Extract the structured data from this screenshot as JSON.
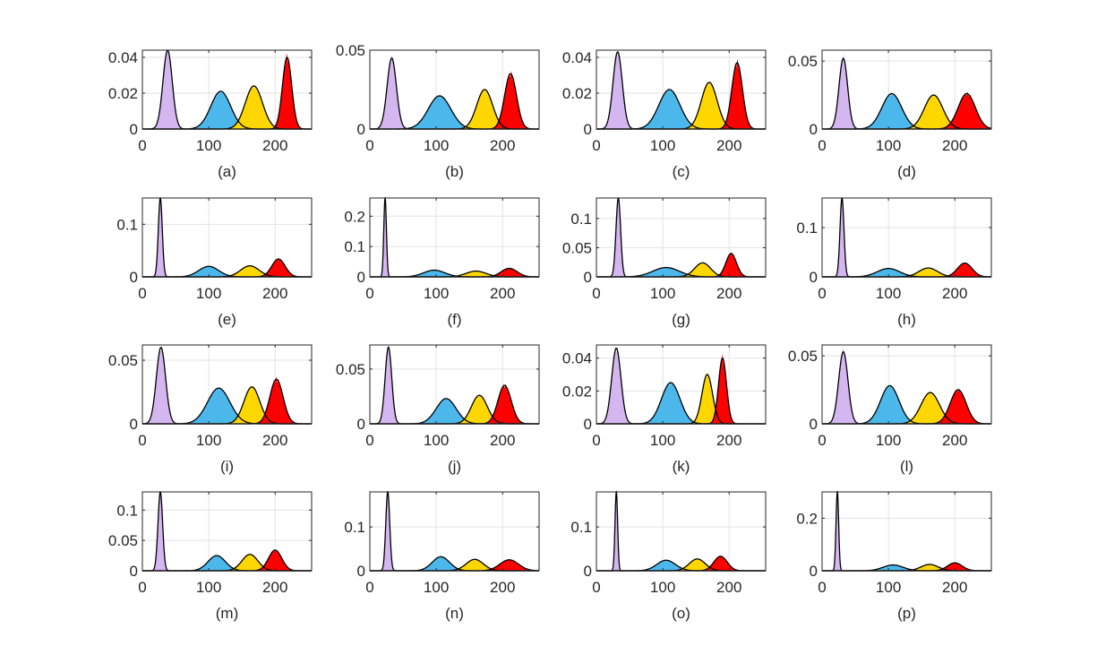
{
  "figure": {
    "grid": true,
    "series_colors": {
      "purple": "#d4b6f0",
      "blue": "#4cb7ea",
      "yellow": "#ffd700",
      "red": "#ff0000",
      "fit": "#000000"
    },
    "xlim": [
      0,
      255
    ],
    "xticks": [
      0,
      100,
      200
    ],
    "xtick_labels": [
      "0",
      "100",
      "200"
    ]
  },
  "chart_data": [
    {
      "caption": "(a)",
      "type": "area",
      "ylim": [
        0,
        0.044
      ],
      "yticks": [
        0,
        0.02,
        0.04
      ],
      "ytick_labels": [
        "0",
        "0.02",
        "0.04"
      ],
      "components": [
        {
          "name": "purple",
          "mu": 38,
          "sigma": 7,
          "peak": 0.044
        },
        {
          "name": "blue",
          "mu": 118,
          "sigma": 15,
          "peak": 0.021
        },
        {
          "name": "yellow",
          "mu": 168,
          "sigma": 13,
          "peak": 0.024
        },
        {
          "name": "red",
          "mu": 218,
          "sigma": 7,
          "peak": 0.04
        }
      ]
    },
    {
      "caption": "(b)",
      "type": "area",
      "ylim": [
        0,
        0.05
      ],
      "yticks": [
        0,
        0.05
      ],
      "ytick_labels": [
        "0",
        "0.05"
      ],
      "components": [
        {
          "name": "purple",
          "mu": 33,
          "sigma": 7,
          "peak": 0.045
        },
        {
          "name": "blue",
          "mu": 105,
          "sigma": 17,
          "peak": 0.021
        },
        {
          "name": "yellow",
          "mu": 173,
          "sigma": 12,
          "peak": 0.025
        },
        {
          "name": "red",
          "mu": 212,
          "sigma": 9,
          "peak": 0.035
        }
      ]
    },
    {
      "caption": "(c)",
      "type": "area",
      "ylim": [
        0,
        0.044
      ],
      "yticks": [
        0,
        0.02,
        0.04
      ],
      "ytick_labels": [
        "0",
        "0.02",
        "0.04"
      ],
      "components": [
        {
          "name": "purple",
          "mu": 32,
          "sigma": 7,
          "peak": 0.043
        },
        {
          "name": "blue",
          "mu": 110,
          "sigma": 16,
          "peak": 0.022
        },
        {
          "name": "yellow",
          "mu": 170,
          "sigma": 12,
          "peak": 0.026
        },
        {
          "name": "red",
          "mu": 212,
          "sigma": 8,
          "peak": 0.037
        }
      ]
    },
    {
      "caption": "(d)",
      "type": "area",
      "ylim": [
        0,
        0.058
      ],
      "yticks": [
        0,
        0.05
      ],
      "ytick_labels": [
        "0",
        "0.05"
      ],
      "components": [
        {
          "name": "purple",
          "mu": 32,
          "sigma": 6.5,
          "peak": 0.052
        },
        {
          "name": "blue",
          "mu": 105,
          "sigma": 15,
          "peak": 0.026
        },
        {
          "name": "yellow",
          "mu": 168,
          "sigma": 14,
          "peak": 0.025
        },
        {
          "name": "red",
          "mu": 218,
          "sigma": 13,
          "peak": 0.026
        }
      ]
    },
    {
      "caption": "(e)",
      "type": "area",
      "ylim": [
        0,
        0.15
      ],
      "yticks": [
        0,
        0.1
      ],
      "ytick_labels": [
        "0",
        "0.1"
      ],
      "components": [
        {
          "name": "purple",
          "mu": 27,
          "sigma": 3,
          "peak": 0.15
        },
        {
          "name": "blue",
          "mu": 100,
          "sigma": 15,
          "peak": 0.02
        },
        {
          "name": "yellow",
          "mu": 162,
          "sigma": 14,
          "peak": 0.021
        },
        {
          "name": "red",
          "mu": 205,
          "sigma": 10,
          "peak": 0.034
        }
      ]
    },
    {
      "caption": "(f)",
      "type": "area",
      "ylim": [
        0,
        0.26
      ],
      "yticks": [
        0,
        0.1,
        0.2
      ],
      "ytick_labels": [
        "0",
        "0.1",
        "0.2"
      ],
      "components": [
        {
          "name": "purple",
          "mu": 23,
          "sigma": 2,
          "peak": 0.26
        },
        {
          "name": "blue",
          "mu": 97,
          "sigma": 16,
          "peak": 0.022
        },
        {
          "name": "yellow",
          "mu": 160,
          "sigma": 15,
          "peak": 0.019
        },
        {
          "name": "red",
          "mu": 210,
          "sigma": 12,
          "peak": 0.028
        }
      ]
    },
    {
      "caption": "(g)",
      "type": "area",
      "ylim": [
        0,
        0.135
      ],
      "yticks": [
        0,
        0.05,
        0.1
      ],
      "ytick_labels": [
        "0",
        "0.05",
        "0.1"
      ],
      "components": [
        {
          "name": "purple",
          "mu": 33,
          "sigma": 3.5,
          "peak": 0.135
        },
        {
          "name": "blue",
          "mu": 105,
          "sigma": 20,
          "peak": 0.016
        },
        {
          "name": "yellow",
          "mu": 160,
          "sigma": 12,
          "peak": 0.024
        },
        {
          "name": "red",
          "mu": 203,
          "sigma": 8,
          "peak": 0.04
        }
      ]
    },
    {
      "caption": "(h)",
      "type": "area",
      "ylim": [
        0,
        0.16
      ],
      "yticks": [
        0,
        0.1
      ],
      "ytick_labels": [
        "0",
        "0.1"
      ],
      "components": [
        {
          "name": "purple",
          "mu": 30,
          "sigma": 3,
          "peak": 0.16
        },
        {
          "name": "blue",
          "mu": 100,
          "sigma": 17,
          "peak": 0.017
        },
        {
          "name": "yellow",
          "mu": 160,
          "sigma": 14,
          "peak": 0.018
        },
        {
          "name": "red",
          "mu": 215,
          "sigma": 11,
          "peak": 0.028
        }
      ]
    },
    {
      "caption": "(i)",
      "type": "area",
      "ylim": [
        0,
        0.062
      ],
      "yticks": [
        0,
        0.05
      ],
      "ytick_labels": [
        "0",
        "0.05"
      ],
      "components": [
        {
          "name": "purple",
          "mu": 28,
          "sigma": 7,
          "peak": 0.06
        },
        {
          "name": "blue",
          "mu": 115,
          "sigma": 17,
          "peak": 0.028
        },
        {
          "name": "yellow",
          "mu": 165,
          "sigma": 12,
          "peak": 0.029
        },
        {
          "name": "red",
          "mu": 202,
          "sigma": 10,
          "peak": 0.035
        }
      ]
    },
    {
      "caption": "(j)",
      "type": "area",
      "ylim": [
        0,
        0.072
      ],
      "yticks": [
        0,
        0.05
      ],
      "ytick_labels": [
        "0",
        "0.05"
      ],
      "components": [
        {
          "name": "purple",
          "mu": 28,
          "sigma": 5,
          "peak": 0.07
        },
        {
          "name": "blue",
          "mu": 115,
          "sigma": 15,
          "peak": 0.023
        },
        {
          "name": "yellow",
          "mu": 165,
          "sigma": 12,
          "peak": 0.026
        },
        {
          "name": "red",
          "mu": 203,
          "sigma": 10,
          "peak": 0.035
        }
      ]
    },
    {
      "caption": "(k)",
      "type": "area",
      "ylim": [
        0,
        0.048
      ],
      "yticks": [
        0,
        0.02,
        0.04
      ],
      "ytick_labels": [
        "0",
        "0.02",
        "0.04"
      ],
      "components": [
        {
          "name": "purple",
          "mu": 30,
          "sigma": 7,
          "peak": 0.046
        },
        {
          "name": "blue",
          "mu": 112,
          "sigma": 14,
          "peak": 0.025
        },
        {
          "name": "yellow",
          "mu": 167,
          "sigma": 8,
          "peak": 0.03
        },
        {
          "name": "red",
          "mu": 190,
          "sigma": 6,
          "peak": 0.04
        }
      ]
    },
    {
      "caption": "(l)",
      "type": "area",
      "ylim": [
        0,
        0.058
      ],
      "yticks": [
        0,
        0.05
      ],
      "ytick_labels": [
        "0",
        "0.05"
      ],
      "components": [
        {
          "name": "purple",
          "mu": 32,
          "sigma": 7,
          "peak": 0.053
        },
        {
          "name": "blue",
          "mu": 102,
          "sigma": 14,
          "peak": 0.028
        },
        {
          "name": "yellow",
          "mu": 163,
          "sigma": 14,
          "peak": 0.023
        },
        {
          "name": "red",
          "mu": 205,
          "sigma": 12,
          "peak": 0.025
        }
      ]
    },
    {
      "caption": "(m)",
      "type": "area",
      "ylim": [
        0,
        0.13
      ],
      "yticks": [
        0,
        0.05,
        0.1
      ],
      "ytick_labels": [
        "0",
        "0.05",
        "0.1"
      ],
      "components": [
        {
          "name": "purple",
          "mu": 27,
          "sigma": 3.5,
          "peak": 0.13
        },
        {
          "name": "blue",
          "mu": 112,
          "sigma": 13,
          "peak": 0.025
        },
        {
          "name": "yellow",
          "mu": 162,
          "sigma": 12,
          "peak": 0.027
        },
        {
          "name": "red",
          "mu": 200,
          "sigma": 10,
          "peak": 0.034
        }
      ]
    },
    {
      "caption": "(n)",
      "type": "area",
      "ylim": [
        0,
        0.18
      ],
      "yticks": [
        0,
        0.1
      ],
      "ytick_labels": [
        "0",
        "0.1"
      ],
      "components": [
        {
          "name": "purple",
          "mu": 27,
          "sigma": 3,
          "peak": 0.18
        },
        {
          "name": "blue",
          "mu": 107,
          "sigma": 13,
          "peak": 0.032
        },
        {
          "name": "yellow",
          "mu": 158,
          "sigma": 13,
          "peak": 0.026
        },
        {
          "name": "red",
          "mu": 210,
          "sigma": 14,
          "peak": 0.025
        }
      ]
    },
    {
      "caption": "(o)",
      "type": "area",
      "ylim": [
        0,
        0.18
      ],
      "yticks": [
        0,
        0.1
      ],
      "ytick_labels": [
        "0",
        "0.1"
      ],
      "components": [
        {
          "name": "purple",
          "mu": 30,
          "sigma": 2,
          "peak": 0.18
        },
        {
          "name": "blue",
          "mu": 105,
          "sigma": 14,
          "peak": 0.024
        },
        {
          "name": "yellow",
          "mu": 152,
          "sigma": 12,
          "peak": 0.027
        },
        {
          "name": "red",
          "mu": 187,
          "sigma": 10,
          "peak": 0.033
        }
      ]
    },
    {
      "caption": "(p)",
      "type": "area",
      "ylim": [
        0,
        0.3
      ],
      "yticks": [
        0,
        0.2
      ],
      "ytick_labels": [
        "0",
        "0.2"
      ],
      "components": [
        {
          "name": "purple",
          "mu": 23,
          "sigma": 2,
          "peak": 0.3
        },
        {
          "name": "blue",
          "mu": 107,
          "sigma": 15,
          "peak": 0.022
        },
        {
          "name": "yellow",
          "mu": 162,
          "sigma": 13,
          "peak": 0.024
        },
        {
          "name": "red",
          "mu": 200,
          "sigma": 11,
          "peak": 0.03
        }
      ]
    }
  ]
}
